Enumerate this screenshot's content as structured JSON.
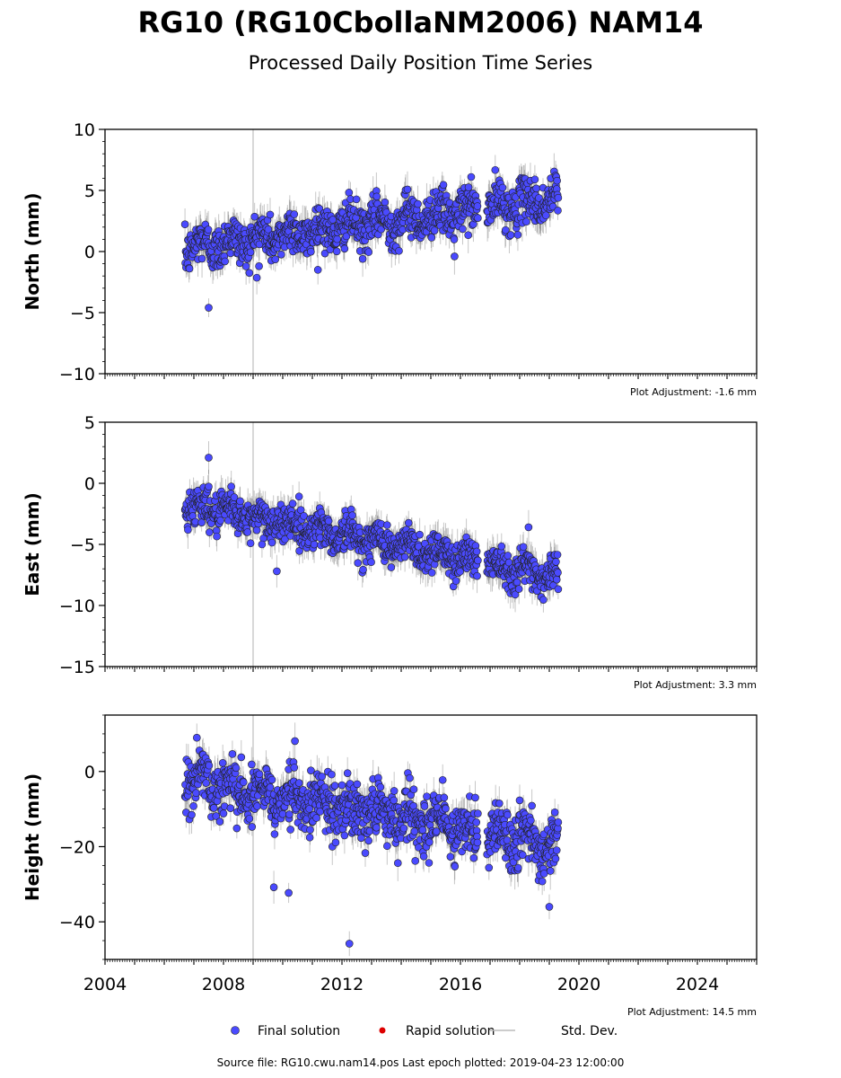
{
  "header": {
    "title": "RG10 (RG10CbollaNM2006) NAM14",
    "subtitle": "Processed Daily Position Time Series"
  },
  "footer": {
    "source_text": "Source file: RG10.cwu.nam14.pos  Last epoch plotted: 2019-04-23 12:00:00"
  },
  "colors": {
    "final_solution": "#4a4aff",
    "rapid_solution": "#dd0000",
    "std_dev": "#bbbbbb",
    "marker_edge": "#222222",
    "vertical_marker": "#cccccc"
  },
  "chart_data": [
    {
      "type": "scatter",
      "ylabel": "North (mm)",
      "adjustment": "Plot Adjustment: -1.6 mm",
      "xlim": [
        2004,
        2026
      ],
      "ylim": [
        -10,
        10
      ],
      "yticks": [
        10,
        5,
        0,
        -5,
        -10
      ],
      "data_start": 2006.7,
      "gap": [
        2016.6,
        2016.9
      ],
      "data_end": 2019.31,
      "trend_start": 0.3,
      "trend_end": 4.3,
      "scatter": 1.2,
      "outliers": [
        [
          2007.5,
          -4.6
        ],
        [
          2009.2,
          -1.2
        ],
        [
          2015.8,
          -0.4
        ]
      ],
      "vertical_marker_x": 2009.0
    },
    {
      "type": "scatter",
      "ylabel": "East (mm)",
      "adjustment": "Plot Adjustment: 3.3 mm",
      "xlim": [
        2004,
        2026
      ],
      "ylim": [
        -15,
        5
      ],
      "yticks": [
        5,
        0,
        -5,
        -10,
        -15
      ],
      "data_start": 2006.7,
      "gap": [
        2016.6,
        2016.9
      ],
      "data_end": 2019.31,
      "trend_start": -1.7,
      "trend_end": -7.6,
      "scatter": 1.0,
      "outliers": [
        [
          2007.5,
          2.1
        ],
        [
          2009.3,
          -5.0
        ],
        [
          2009.8,
          -7.2
        ],
        [
          2018.3,
          -3.6
        ]
      ],
      "vertical_marker_x": 2009.0
    },
    {
      "type": "scatter",
      "ylabel": "Height (mm)",
      "adjustment": "Plot Adjustment: 14.5 mm",
      "xlim": [
        2004,
        2026
      ],
      "ylim": [
        -50,
        15
      ],
      "yticks": [
        0,
        -20,
        -40
      ],
      "xticks": [
        2004,
        2008,
        2012,
        2016,
        2020,
        2024
      ],
      "data_start": 2006.7,
      "gap": [
        2016.6,
        2016.9
      ],
      "data_end": 2019.31,
      "trend_start": -2,
      "trend_end": -20,
      "scatter": 5.0,
      "outliers": [
        [
          2012.25,
          -45.8
        ],
        [
          2010.2,
          -32.3
        ],
        [
          2009.7,
          -30.8
        ],
        [
          2019.0,
          -36.0
        ]
      ],
      "vertical_marker_x": 2009.0
    }
  ],
  "legend": {
    "items": [
      {
        "label": "Final solution",
        "kind": "dot",
        "color": "#4a4aff"
      },
      {
        "label": "Rapid solution",
        "kind": "dot-small",
        "color": "#dd0000"
      },
      {
        "label": "Std. Dev.",
        "kind": "line",
        "color": "#bbbbbb"
      }
    ]
  }
}
